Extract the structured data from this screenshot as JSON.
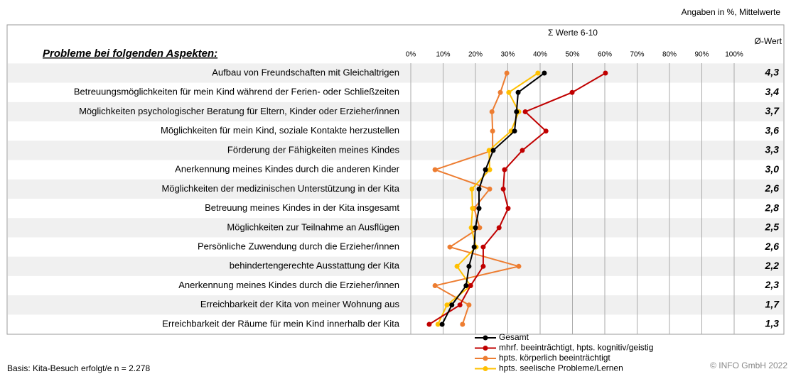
{
  "chart_data": {
    "type": "line",
    "note_top": "Angaben in %, Mittelwerte",
    "subtitle": "Σ Werte 6-10",
    "title": "Probleme bei folgenden Aspekten:",
    "avg_title": "Ø-Wert",
    "footer_left": "Basis: Kita-Besuch erfolgt/e n = 2.278",
    "footer_right": "© INFO GmbH 2022",
    "categories": [
      "Aufbau von Freundschaften mit Gleichaltrigen",
      "Betreuungsmöglichkeiten für mein Kind während der Ferien- oder Schließzeiten",
      "Möglichkeiten psychologischer Beratung für Eltern, Kinder oder Erzieher/innen",
      "Möglichkeiten für mein Kind, soziale Kontakte herzustellen",
      "Förderung der Fähigkeiten meines Kindes",
      "Anerkennung meines Kindes durch die anderen Kinder",
      "Möglichkeiten der medizinischen Unterstützung in der Kita",
      "Betreuung meines Kindes in der Kita insgesamt",
      "Möglichkeiten zur Teilnahme an Ausflügen",
      "Persönliche Zuwendung durch die Erzieher/innen",
      "behindertengerechte Ausstattung der Kita",
      "Anerkennung meines Kindes durch die Erzieher/innen",
      "Erreichbarkeit der Kita von meiner Wohnung aus",
      "Erreichbarkeit der Räume für mein Kind innerhalb der Kita"
    ],
    "avg_values": [
      "4,3",
      "3,4",
      "3,7",
      "3,6",
      "3,3",
      "3,0",
      "2,6",
      "2,8",
      "2,5",
      "2,6",
      "2,2",
      "2,3",
      "1,7",
      "1,3"
    ],
    "series": [
      {
        "name": "hpts. körperlich beeinträchtigt",
        "color": "#ed7d31",
        "values": [
          29.7,
          27.7,
          25.1,
          25.3,
          25.3,
          7.5,
          24.4,
          19.6,
          21.3,
          12.1,
          33.4,
          7.5,
          18,
          16
        ]
      },
      {
        "name": "hpts. seelische Probleme/Lernen",
        "color": "#ffc000",
        "values": [
          39.3,
          30.3,
          33.4,
          31,
          24.2,
          24.4,
          18.9,
          19.1,
          18.7,
          20.2,
          14.3,
          18.5,
          11.2,
          8.4
        ]
      },
      {
        "name": "mhrf. beeinträchtigt, hpts. kognitiv/geistig",
        "color": "#c00000",
        "values": [
          60.2,
          49.9,
          35.4,
          41.8,
          34.5,
          29,
          28.6,
          30.1,
          27.3,
          22.4,
          22.4,
          18.5,
          15.2,
          5.7
        ]
      },
      {
        "name": "Gesamt",
        "color": "#000000",
        "values": [
          41.3,
          33.2,
          32.7,
          32.1,
          25.5,
          23.1,
          21.1,
          21.1,
          20,
          19.6,
          18,
          17.1,
          12.7,
          9.7
        ]
      }
    ],
    "legend_order": [
      3,
      2,
      0,
      1
    ],
    "xlim": [
      0,
      100
    ],
    "xticks": [
      {
        "value": 0,
        "label": "0%"
      },
      {
        "value": 10,
        "label": "10%"
      },
      {
        "value": 20,
        "label": "20%"
      },
      {
        "value": 30,
        "label": "30%"
      },
      {
        "value": 40,
        "label": "40%"
      },
      {
        "value": 50,
        "label": "50%"
      },
      {
        "value": 60,
        "label": "60%"
      },
      {
        "value": 70,
        "label": "70%"
      },
      {
        "value": 80,
        "label": "80%"
      },
      {
        "value": 90,
        "label": "90%"
      },
      {
        "value": 100,
        "label": "100%"
      }
    ],
    "grid": true
  }
}
